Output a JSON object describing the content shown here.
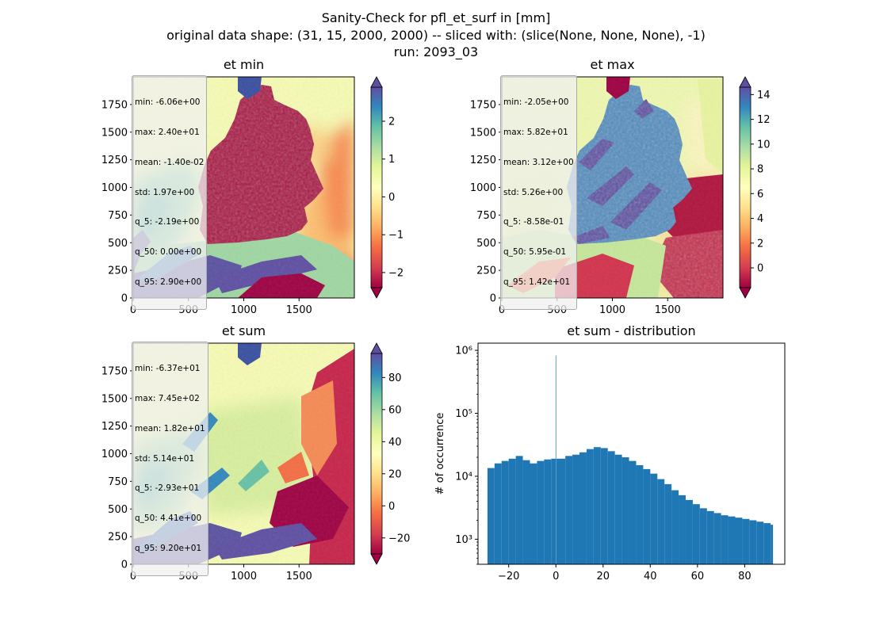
{
  "figure": {
    "title_lines": [
      "Sanity-Check for pfl_et_surf in [mm]",
      "original data shape: (31, 15, 2000, 2000) -- sliced with: (slice(None, None, None), -1)",
      "run: 2093_03"
    ]
  },
  "colors": {
    "hist_bar": "#1f77b4",
    "spectral": [
      "#9e0142",
      "#d53e4f",
      "#f46d43",
      "#fdae61",
      "#fee08b",
      "#ffffbf",
      "#e6f598",
      "#abdda4",
      "#66c2a5",
      "#3288bd",
      "#5e4fa2"
    ]
  },
  "panels": [
    {
      "title": "et min",
      "x_ticks": [
        "0",
        "500",
        "1000",
        "1500"
      ],
      "y_ticks": [
        "0",
        "250",
        "500",
        "750",
        "1000",
        "1250",
        "1500",
        "1750"
      ],
      "stats": [
        "min: -6.06e+00",
        "max: 2.40e+01",
        "mean: -1.40e-02",
        "std: 1.97e+00",
        "q_5: -2.19e+00",
        "q_50: 0.00e+00",
        "q_95: 2.90e+00"
      ],
      "colorbar": {
        "vmin": -2.4,
        "vmax": 2.9,
        "ticks": [
          -2,
          -1,
          0,
          1,
          2
        ],
        "tick_labels": [
          "−2",
          "−1",
          "0",
          "1",
          "2"
        ]
      }
    },
    {
      "title": "et max",
      "x_ticks": [
        "0",
        "500",
        "1000",
        "1500"
      ],
      "y_ticks": [
        "0",
        "250",
        "500",
        "750",
        "1000",
        "1250",
        "1500",
        "1750"
      ],
      "stats": [
        "min: -2.05e+00",
        "max: 5.82e+01",
        "mean: 3.12e+00",
        "std: 5.26e+00",
        "q_5: -8.58e-01",
        "q_50: 5.95e-01",
        "q_95: 1.42e+01"
      ],
      "colorbar": {
        "vmin": -1.6,
        "vmax": 14.6,
        "ticks": [
          0,
          2,
          4,
          6,
          8,
          10,
          12,
          14
        ],
        "tick_labels": [
          "0",
          "2",
          "4",
          "6",
          "8",
          "10",
          "12",
          "14"
        ]
      }
    },
    {
      "title": "et sum",
      "x_ticks": [
        "0",
        "500",
        "1000",
        "1500"
      ],
      "y_ticks": [
        "0",
        "250",
        "500",
        "750",
        "1000",
        "1250",
        "1500",
        "1750"
      ],
      "stats": [
        "min: -6.37e+01",
        "max: 7.45e+02",
        "mean: 1.82e+01",
        "std: 5.14e+01",
        "q_5: -2.93e+01",
        "q_50: 4.41e+00",
        "q_95: 9.20e+01"
      ],
      "colorbar": {
        "vmin": -30,
        "vmax": 95,
        "ticks": [
          -20,
          0,
          20,
          40,
          60,
          80
        ],
        "tick_labels": [
          "−20",
          "0",
          "20",
          "40",
          "60",
          "80"
        ]
      }
    }
  ],
  "chart_data": {
    "type": "bar",
    "title": "et sum - distribution",
    "xlabel": "",
    "ylabel": "# of occurrence",
    "y_scale": "log",
    "xlim": [
      -33,
      97
    ],
    "ylim": [
      400,
      1300000
    ],
    "x_ticks": [
      -20,
      0,
      20,
      40,
      60,
      80
    ],
    "x_tick_labels": [
      "−20",
      "0",
      "20",
      "40",
      "60",
      "80"
    ],
    "y_ticks": [
      1000,
      10000,
      100000,
      1000000
    ],
    "y_tick_labels": [
      "10³",
      "10⁴",
      "10⁵",
      "10⁶"
    ],
    "x": [
      -29,
      -26,
      -23,
      -20,
      -17,
      -14,
      -11,
      -8,
      -5,
      -2,
      0,
      1,
      4,
      7,
      10,
      13,
      16,
      19,
      22,
      25,
      28,
      31,
      34,
      37,
      40,
      43,
      46,
      49,
      52,
      55,
      58,
      61,
      64,
      67,
      70,
      73,
      76,
      79,
      82,
      85,
      88,
      91
    ],
    "values": [
      13500,
      16000,
      17500,
      19000,
      21000,
      18000,
      16000,
      17500,
      18500,
      19000,
      830000,
      19000,
      21000,
      22000,
      24000,
      27000,
      29000,
      28000,
      25000,
      22000,
      20000,
      17500,
      15000,
      13000,
      11000,
      9000,
      7500,
      6000,
      5000,
      4200,
      3600,
      3100,
      2800,
      2600,
      2400,
      2300,
      2200,
      2100,
      2000,
      1900,
      1800,
      1700
    ]
  }
}
